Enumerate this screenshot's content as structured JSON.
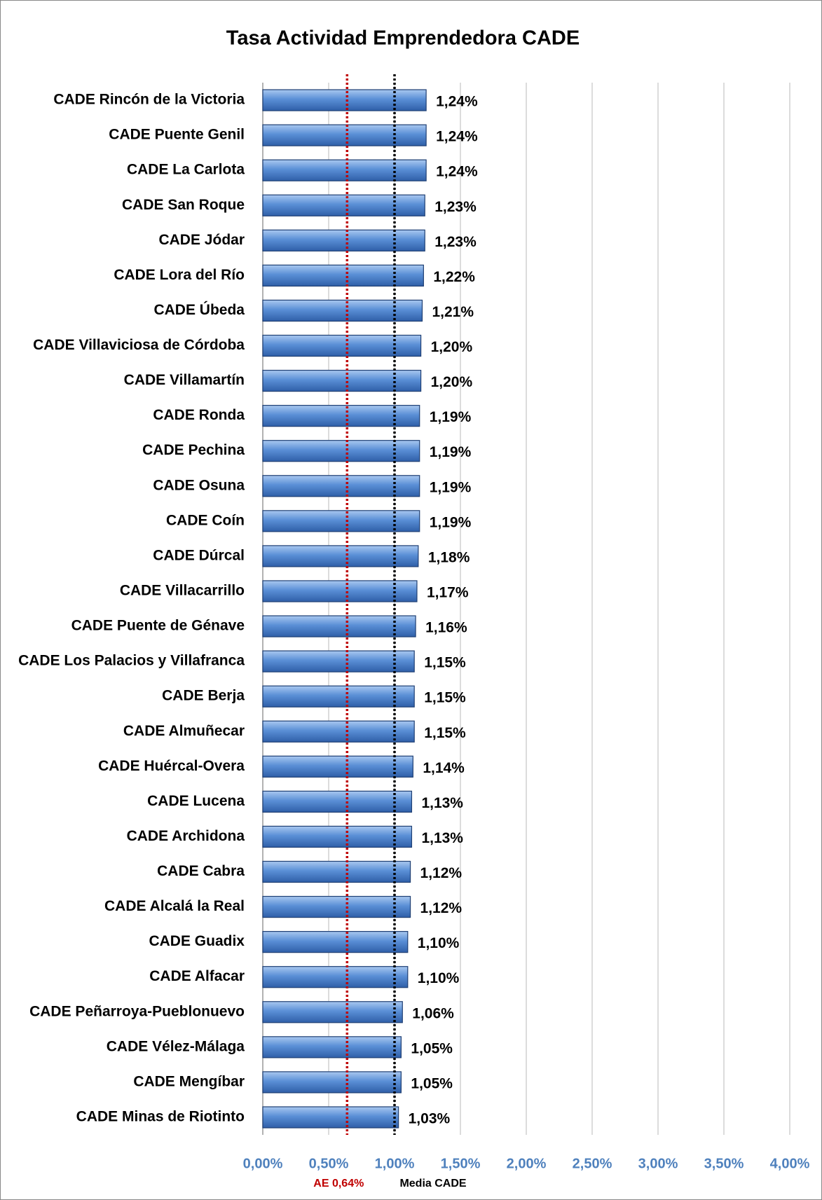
{
  "chart_data": {
    "type": "bar",
    "orientation": "horizontal",
    "title": "Tasa Actividad Emprendedora CADE",
    "categories": [
      "CADE Rincón de la Victoria",
      "CADE Puente Genil",
      "CADE La Carlota",
      "CADE San Roque",
      "CADE Jódar",
      "CADE Lora del Río",
      "CADE Úbeda",
      "CADE Villaviciosa de Córdoba",
      "CADE Villamartín",
      "CADE Ronda",
      "CADE Pechina",
      "CADE Osuna",
      "CADE Coín",
      "CADE Dúrcal",
      "CADE Villacarrillo",
      "CADE Puente de Génave",
      "CADE Los Palacios y Villafranca",
      "CADE Berja",
      "CADE Almuñecar",
      "CADE Huércal-Overa",
      "CADE Lucena",
      "CADE Archidona",
      "CADE Cabra",
      "CADE Alcalá la Real",
      "CADE Guadix",
      "CADE Alfacar",
      "CADE Peñarroya-Pueblonuevo",
      "CADE Vélez-Málaga",
      "CADE Mengíbar",
      "CADE Minas de Riotinto"
    ],
    "values": [
      1.24,
      1.24,
      1.24,
      1.23,
      1.23,
      1.22,
      1.21,
      1.2,
      1.2,
      1.19,
      1.19,
      1.19,
      1.19,
      1.18,
      1.17,
      1.16,
      1.15,
      1.15,
      1.15,
      1.14,
      1.13,
      1.13,
      1.12,
      1.12,
      1.1,
      1.1,
      1.06,
      1.05,
      1.05,
      1.03
    ],
    "value_labels": [
      "1,24%",
      "1,24%",
      "1,24%",
      "1,23%",
      "1,23%",
      "1,22%",
      "1,21%",
      "1,20%",
      "1,20%",
      "1,19%",
      "1,19%",
      "1,19%",
      "1,19%",
      "1,18%",
      "1,17%",
      "1,16%",
      "1,15%",
      "1,15%",
      "1,15%",
      "1,14%",
      "1,13%",
      "1,13%",
      "1,12%",
      "1,12%",
      "1,10%",
      "1,10%",
      "1,06%",
      "1,05%",
      "1,05%",
      "1,03%"
    ],
    "color": "#4a7fc8",
    "xlim": [
      0,
      4
    ],
    "xticks": [
      {
        "value": 0,
        "label": "0,00%"
      },
      {
        "value": 0.5,
        "label": "0,50%"
      },
      {
        "value": 1,
        "label": "1,00%"
      },
      {
        "value": 1.5,
        "label": "1,50%"
      },
      {
        "value": 2,
        "label": "2,00%"
      },
      {
        "value": 2.5,
        "label": "2,50%"
      },
      {
        "value": 3,
        "label": "3,00%"
      },
      {
        "value": 3.5,
        "label": "3,50%"
      },
      {
        "value": 4,
        "label": "4,00%"
      }
    ],
    "grid": true,
    "reference_lines": [
      {
        "label": "AE 0,64%",
        "value": 0.64,
        "color": "#c00000"
      },
      {
        "label": "Media CADE",
        "value": 1.0,
        "color": "#000000"
      }
    ]
  }
}
